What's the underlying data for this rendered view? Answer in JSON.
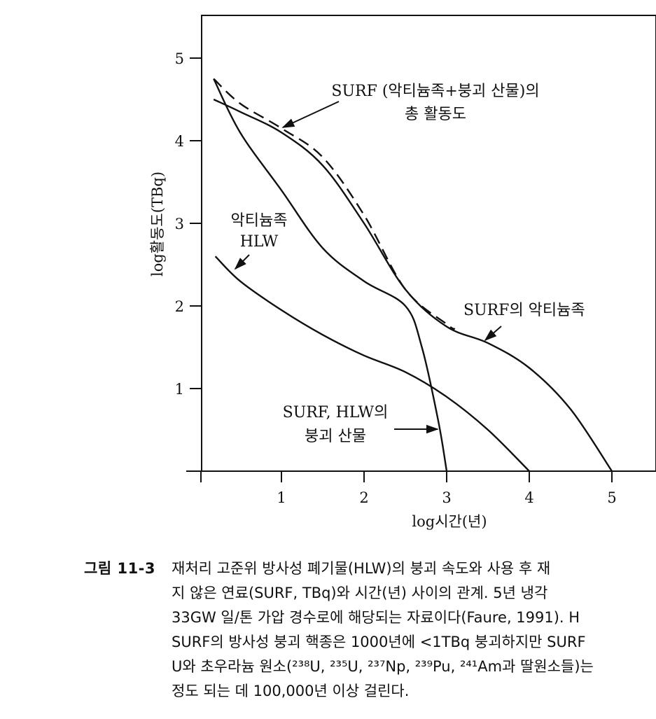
{
  "chart_data": {
    "type": "line",
    "xlabel": "log시간(년)",
    "ylabel": "log활동도(TBq)",
    "xlim": [
      -0.1,
      5
    ],
    "ylim": [
      0,
      5.5
    ],
    "xticks": [
      1,
      2,
      3,
      4,
      5
    ],
    "yticks": [
      1,
      2,
      3,
      4,
      5
    ],
    "grid": false,
    "series": [
      {
        "key": "surf_total",
        "style": "dashed",
        "x": [
          0.18,
          0.5,
          1.0,
          1.5,
          2.0,
          2.5,
          3.0,
          3.1
        ],
        "y": [
          4.75,
          4.45,
          4.15,
          3.8,
          3.1,
          2.2,
          1.78,
          1.72
        ]
      },
      {
        "key": "surf_actinides",
        "style": "solid",
        "x": [
          0.18,
          0.5,
          1.0,
          1.5,
          2.0,
          2.5,
          3.0,
          3.5,
          4.0,
          4.5,
          5.0
        ],
        "y": [
          4.5,
          4.35,
          4.1,
          3.7,
          3.0,
          2.2,
          1.75,
          1.55,
          1.25,
          0.75,
          0.0
        ]
      },
      {
        "key": "hlw_actinides",
        "style": "solid",
        "x": [
          0.2,
          0.5,
          1.0,
          1.5,
          2.0,
          2.5,
          3.0,
          3.5,
          4.0
        ],
        "y": [
          2.6,
          2.3,
          1.95,
          1.65,
          1.4,
          1.2,
          0.9,
          0.5,
          0.0
        ]
      },
      {
        "key": "decay_products",
        "style": "solid",
        "x": [
          0.18,
          0.5,
          1.0,
          1.5,
          2.0,
          2.5,
          2.7,
          2.9,
          3.0
        ],
        "y": [
          4.75,
          4.1,
          3.4,
          2.7,
          2.3,
          2.0,
          1.5,
          0.6,
          0.0
        ]
      }
    ],
    "annotations": [
      {
        "key": "surf_total",
        "lines": [
          "SURF (악티늄족+붕괴 산물)의",
          "총 활동도"
        ]
      },
      {
        "key": "hlw_actinides",
        "lines": [
          "악티늄족",
          "HLW"
        ]
      },
      {
        "key": "surf_actinides",
        "lines": [
          "SURF의 악티늄족"
        ]
      },
      {
        "key": "decay_products",
        "lines": [
          "SURF, HLW의",
          "붕괴 산물"
        ]
      }
    ]
  },
  "caption": {
    "label": "그림 11-3",
    "lines": [
      "재처리 고준위 방사성 폐기물(HLW)의 붕괴 속도와 사용 후 재",
      "지 않은 연료(SURF, TBq)와 시간(년) 사이의 관계. 5년 냉각",
      "33GW 일/톤 가압 경수로에 해당되는 자료이다(Faure, 1991). H",
      "SURF의 방사성 붕괴 핵종은 1000년에 <1TBq 붕괴하지만 SURF",
      "U와 초우라늄 원소(²³⁸U, ²³⁵U, ²³⁷Np, ²³⁹Pu, ²⁴¹Am과 딸원소들)는",
      "정도 되는 데 100,000년 이상 걸린다."
    ]
  }
}
